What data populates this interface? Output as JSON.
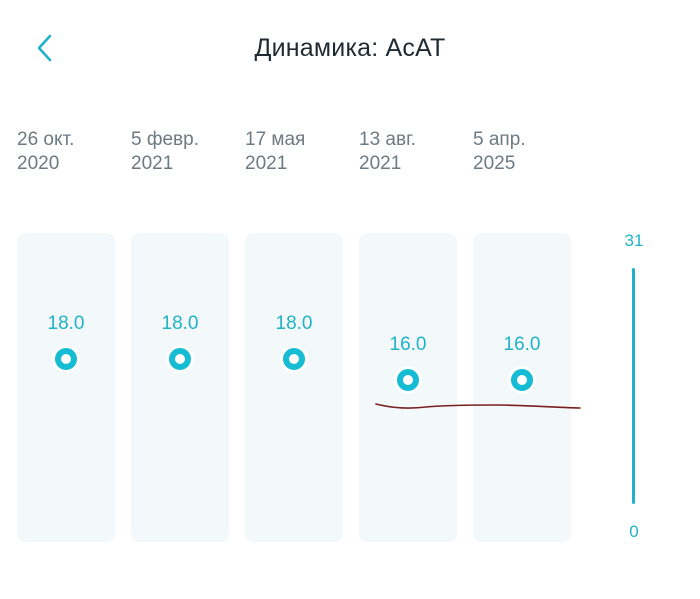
{
  "header": {
    "back_icon": "chevron-left-icon",
    "title": "Динамика: АсАТ"
  },
  "accent_color": "#16bcd3",
  "scale": {
    "max": "31",
    "min": "0"
  },
  "chart_data": {
    "type": "scatter",
    "ylim": [
      0,
      31
    ],
    "points": [
      {
        "date_line1": "26 окт.",
        "date_line2": "2020",
        "value": 18.0,
        "value_label": "18.0"
      },
      {
        "date_line1": "5 февр.",
        "date_line2": "2021",
        "value": 18.0,
        "value_label": "18.0"
      },
      {
        "date_line1": "17 мая",
        "date_line2": "2021",
        "value": 18.0,
        "value_label": "18.0"
      },
      {
        "date_line1": "13 авг.",
        "date_line2": "2021",
        "value": 16.0,
        "value_label": "16.0"
      },
      {
        "date_line1": "5 апр.",
        "date_line2": "2025",
        "value": 16.0,
        "value_label": "16.0"
      }
    ]
  }
}
